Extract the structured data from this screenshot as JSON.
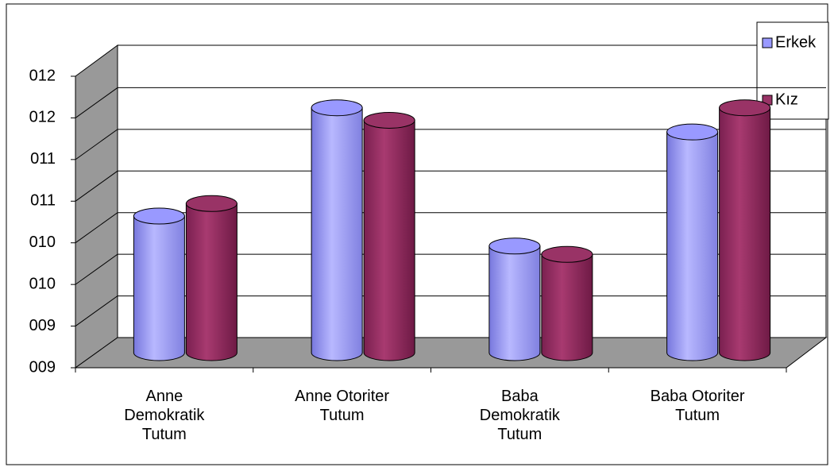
{
  "chart_data": {
    "type": "bar3d",
    "categories": [
      "Anne Demokratik Tutum",
      "Anne Otoriter Tutum",
      "Baba Demokratik Tutum",
      "Baba Otoriter Tutum"
    ],
    "series": [
      {
        "name": "Erkek",
        "color": "#9999ff",
        "values": [
          10.44,
          11.74,
          10.08,
          11.45
        ]
      },
      {
        "name": "Kız",
        "color": "#993366",
        "values": [
          10.59,
          11.59,
          9.98,
          11.74
        ]
      }
    ],
    "ylim": [
      8.8,
      12.3
    ],
    "yticks": [
      {
        "value": 8.8,
        "label": "009"
      },
      {
        "value": 9.3,
        "label": "009"
      },
      {
        "value": 9.8,
        "label": "010"
      },
      {
        "value": 10.3,
        "label": "010"
      },
      {
        "value": 10.8,
        "label": "011"
      },
      {
        "value": 11.3,
        "label": "011"
      },
      {
        "value": 11.8,
        "label": "012"
      },
      {
        "value": 12.3,
        "label": "012"
      }
    ],
    "grid": true,
    "legend": "top-right"
  }
}
